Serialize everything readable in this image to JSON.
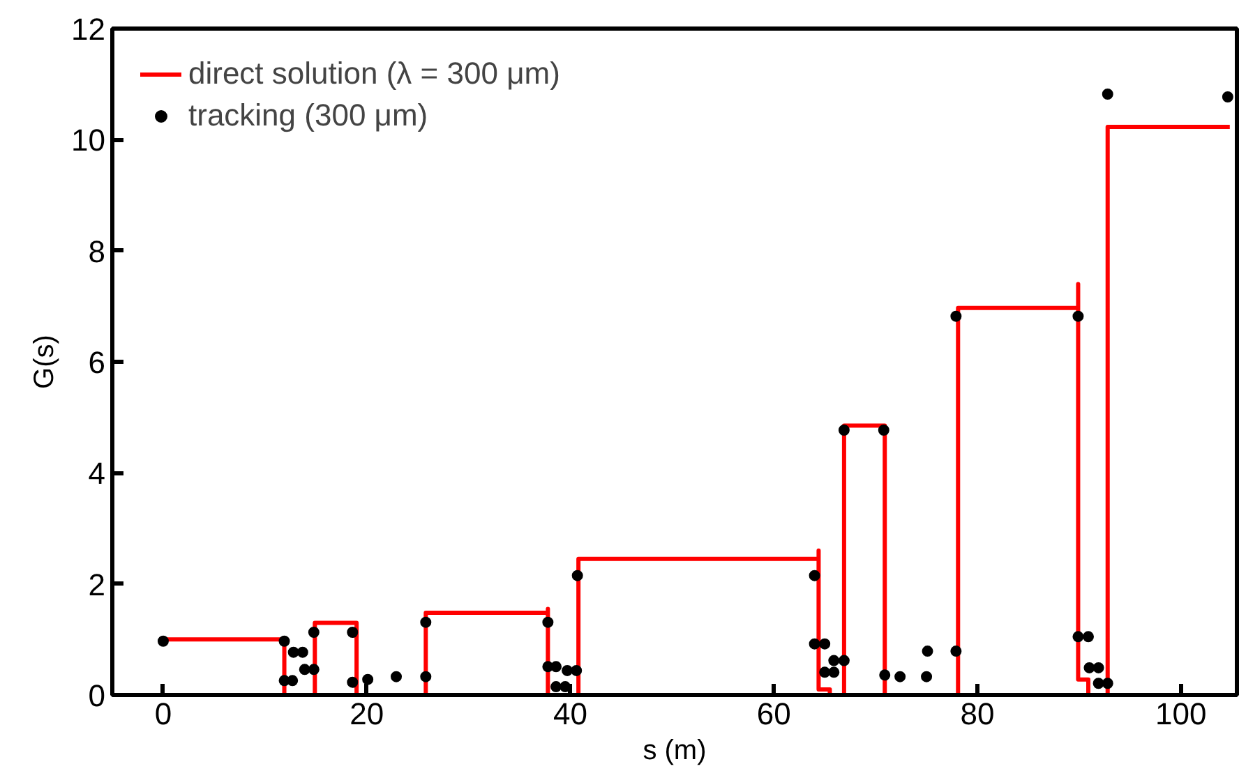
{
  "chart_data": {
    "type": "line",
    "xlabel": "s (m)",
    "ylabel": "G(s)",
    "xlim": [
      -5,
      105.5
    ],
    "ylim": [
      0,
      12
    ],
    "xticks": [
      0,
      20,
      40,
      60,
      80,
      100
    ],
    "yticks": [
      0,
      2,
      4,
      6,
      8,
      10,
      12
    ],
    "grid": false,
    "legend": "top left",
    "series": [
      {
        "name": "direct solution (λ = 300 μm)",
        "color": "#ff0000",
        "line_style": "solid",
        "x": [
          0,
          11.9,
          11.9,
          14.9,
          14.9,
          19.0,
          19.0,
          25.8,
          25.8,
          37.8,
          37.8,
          37.8,
          40.8,
          40.8,
          64.4,
          64.4,
          64.4,
          65.5,
          65.5,
          66.9,
          66.9,
          70.9,
          70.9,
          78.1,
          78.1,
          89.9,
          89.9,
          89.9,
          90.9,
          90.9,
          92.8,
          92.8,
          104.8
        ],
        "values": [
          1.0,
          1.0,
          0,
          0,
          1.3,
          1.3,
          0,
          0,
          1.48,
          1.48,
          1.55,
          0,
          0,
          2.45,
          2.45,
          2.6,
          0.1,
          0.1,
          0,
          0,
          4.85,
          4.85,
          0,
          0,
          6.97,
          6.97,
          7.4,
          0.28,
          0.28,
          0,
          0,
          10.23,
          10.23
        ]
      },
      {
        "name": "tracking (300 μm)",
        "type": "scatter",
        "color": "#000000",
        "marker": "circle",
        "x": [
          0,
          11.9,
          11.9,
          12.7,
          12.8,
          13.7,
          13.9,
          14.8,
          14.8,
          18.6,
          18.6,
          20.1,
          22.9,
          25.8,
          25.8,
          37.8,
          37.8,
          38.6,
          38.6,
          39.5,
          39.7,
          40.6,
          40.7,
          64.0,
          64.0,
          65.0,
          65.0,
          65.9,
          65.9,
          66.9,
          66.9,
          70.8,
          70.9,
          72.4,
          75.0,
          75.1,
          77.9,
          77.9,
          89.9,
          89.9,
          90.9,
          91.0,
          91.9,
          91.9,
          92.8,
          92.8,
          104.6
        ],
        "values": [
          0.97,
          0.97,
          0.26,
          0.26,
          0.77,
          0.77,
          0.46,
          0.46,
          1.13,
          1.13,
          0.23,
          0.28,
          0.33,
          0.33,
          1.31,
          1.31,
          0.51,
          0.51,
          0.15,
          0.15,
          0.44,
          0.44,
          2.15,
          2.15,
          0.92,
          0.92,
          0.41,
          0.41,
          0.62,
          0.62,
          4.77,
          4.77,
          0.36,
          0.33,
          0.33,
          0.79,
          0.79,
          6.82,
          6.82,
          1.05,
          1.05,
          0.49,
          0.49,
          0.21,
          0.21,
          10.82,
          10.77
        ]
      }
    ]
  }
}
